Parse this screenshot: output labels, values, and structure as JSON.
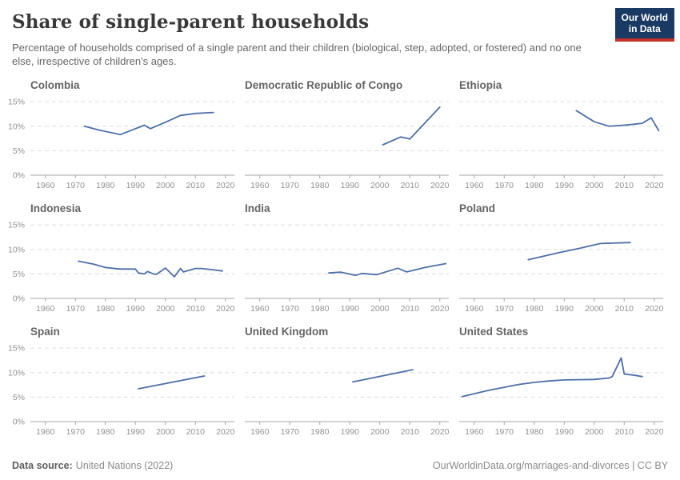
{
  "header": {
    "title": "Share of single-parent households",
    "subtitle": "Percentage of households comprised of a single parent and their children (biological, step, adopted, or fostered) and no one else, irrespective of children's ages.",
    "logo": {
      "line1": "Our World",
      "line2": "in Data"
    }
  },
  "footer": {
    "source_label": "Data source:",
    "source_value": "United Nations (2022)",
    "credit": "OurWorldinData.org/marriages-and-divorces | CC BY"
  },
  "colors": {
    "line": "#4d6fa6",
    "grid": "#dcdcdc",
    "axis": "#a6a6a6",
    "tick_text": "#929292",
    "logo_bg": "#1a3a63",
    "logo_red": "#c3332b"
  },
  "axes": {
    "x_domain": [
      1955,
      2023
    ],
    "y_domain": [
      0,
      16
    ],
    "x_ticks": [
      1960,
      1970,
      1980,
      1990,
      2000,
      2010,
      2020
    ],
    "y_ticks": [
      0,
      5,
      10,
      15
    ],
    "y_tick_suffix": "%",
    "grid": true,
    "y_labels_first_column_only": true
  },
  "chart_data": [
    {
      "type": "line",
      "title": "Colombia",
      "x": [
        1973,
        1978,
        1985,
        1993,
        1995,
        2000,
        2005,
        2010,
        2016
      ],
      "y": [
        10.0,
        9.2,
        8.3,
        10.2,
        9.5,
        10.8,
        12.2,
        12.6,
        12.8
      ]
    },
    {
      "type": "line",
      "title": "Democratic Republic of Congo",
      "x": [
        2001,
        2007,
        2010,
        2020
      ],
      "y": [
        6.2,
        7.8,
        7.4,
        13.9
      ]
    },
    {
      "type": "line",
      "title": "Ethiopia",
      "x": [
        1994,
        2000,
        2005,
        2011,
        2016,
        2019,
        2021.5
      ],
      "y": [
        13.2,
        10.9,
        10.0,
        10.25,
        10.6,
        11.7,
        9.1
      ]
    },
    {
      "type": "line",
      "title": "Indonesia",
      "x": [
        1971,
        1976,
        1980,
        1985,
        1990,
        1991,
        1993,
        1994,
        1996,
        1997,
        2000,
        2003,
        2005,
        2006,
        2010,
        2012,
        2015,
        2019
      ],
      "y": [
        7.6,
        7.0,
        6.3,
        6.0,
        6.0,
        5.2,
        5.0,
        5.5,
        5.0,
        4.9,
        6.2,
        4.4,
        6.1,
        5.4,
        6.1,
        6.1,
        5.9,
        5.6
      ]
    },
    {
      "type": "line",
      "title": "India",
      "x": [
        1983,
        1987,
        1992,
        1994,
        1999,
        2006,
        2009,
        2015,
        2022
      ],
      "y": [
        5.2,
        5.35,
        4.7,
        5.1,
        4.85,
        6.15,
        5.4,
        6.3,
        7.1
      ]
    },
    {
      "type": "line",
      "title": "Poland",
      "x": [
        1978,
        1988,
        1995,
        2002,
        2012
      ],
      "y": [
        7.9,
        9.3,
        10.2,
        11.2,
        11.4
      ]
    },
    {
      "type": "line",
      "title": "Spain",
      "x": [
        1991,
        2013
      ],
      "y": [
        6.7,
        9.3
      ]
    },
    {
      "type": "line",
      "title": "United Kingdom",
      "x": [
        1991,
        2011
      ],
      "y": [
        8.1,
        10.6
      ]
    },
    {
      "type": "line",
      "title": "United States",
      "x": [
        1956,
        1960,
        1965,
        1970,
        1975,
        1980,
        1985,
        1990,
        1995,
        2000,
        2005,
        2006,
        2009,
        2010,
        2013,
        2016
      ],
      "y": [
        5.1,
        5.7,
        6.4,
        7.0,
        7.6,
        8.0,
        8.3,
        8.5,
        8.55,
        8.6,
        8.9,
        9.2,
        13.0,
        9.7,
        9.5,
        9.2
      ]
    }
  ]
}
